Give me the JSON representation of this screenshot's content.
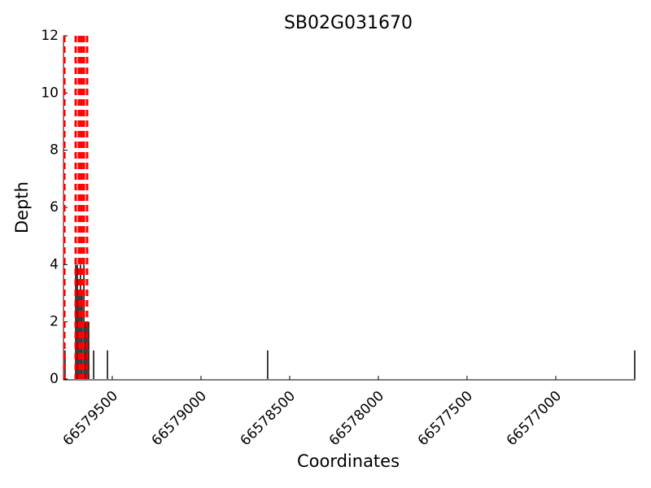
{
  "chart_data": {
    "type": "spike",
    "title": "SB02G031670",
    "x_label": "Coordinates",
    "y_label": "Depth",
    "x": [
      66579766,
      66579706,
      66579697,
      66579688,
      66579679,
      66579670,
      66579660,
      66579651,
      66579642,
      66579633,
      66579605,
      66579527,
      66578624,
      66576555
    ],
    "values": [
      1,
      4,
      4,
      3,
      4,
      3,
      4,
      2,
      2,
      2,
      1,
      1,
      1,
      1
    ],
    "color": "#000000",
    "highlight_lines": [
      66579770,
      66579706,
      66579688,
      66579674,
      66579660,
      66579642
    ],
    "highlight_color": "#ff0000",
    "xlim": [
      66579775,
      66576555
    ],
    "xticks": [
      66579500,
      66579000,
      66578500,
      66578000,
      66577500,
      66577000
    ],
    "ylim": [
      0,
      12
    ],
    "yticks": [
      0,
      2,
      4,
      6,
      8,
      10,
      12
    ]
  }
}
